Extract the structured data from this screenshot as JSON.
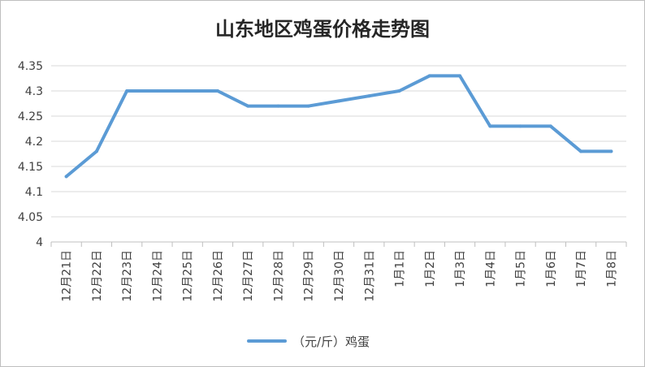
{
  "chart_data": {
    "type": "line",
    "title": "山东地区鸡蛋价格走势图",
    "xlabel": "",
    "ylabel": "",
    "ylim": [
      4,
      4.35
    ],
    "yticks": [
      "4",
      "4.05",
      "4.1",
      "4.15",
      "4.2",
      "4.25",
      "4.3",
      "4.35"
    ],
    "categories": [
      "12月21日",
      "12月22日",
      "12月23日",
      "12月24日",
      "12月25日",
      "12月26日",
      "12月27日",
      "12月28日",
      "12月29日",
      "12月30日",
      "12月31日",
      "1月1日",
      "1月2日",
      "1月3日",
      "1月4日",
      "1月5日",
      "1月6日",
      "1月7日",
      "1月8日"
    ],
    "series": [
      {
        "name": "（元/斤）鸡蛋",
        "color": "#5b9bd5",
        "values": [
          4.13,
          4.18,
          4.3,
          4.3,
          4.3,
          4.3,
          4.27,
          4.27,
          4.27,
          4.28,
          4.29,
          4.3,
          4.33,
          4.33,
          4.23,
          4.23,
          4.23,
          4.18,
          4.18
        ]
      }
    ],
    "grid": true,
    "legend_position": "bottom"
  }
}
